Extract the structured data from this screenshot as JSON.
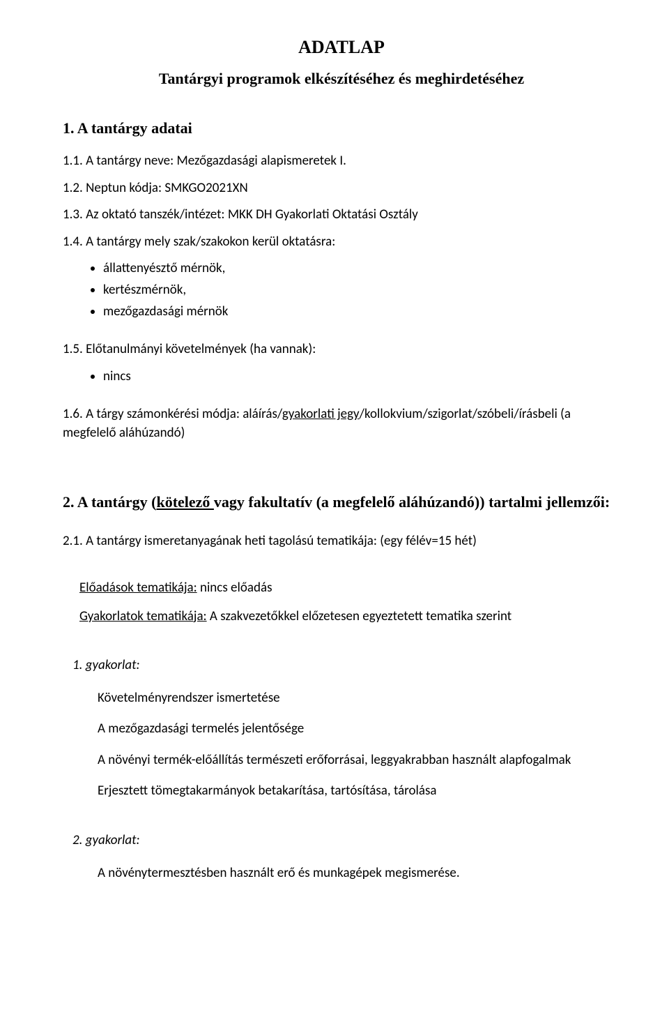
{
  "title": "ADATLAP",
  "subtitle": "Tantárgyi programok elkészítéséhez és meghirdetéséhez",
  "section1": {
    "heading": "1. A tantárgy adatai",
    "l11": "1.1. A tantárgy neve: Mezőgazdasági alapismeretek I.",
    "l12": "1.2. Neptun kódja: SMKGO2021XN",
    "l13": "1.3. Az oktató tanszék/intézet: MKK DH Gyakorlati Oktatási Osztály",
    "l14": "1.4. A tantárgy mely szak/szakokon kerül oktatásra:",
    "bullets14": [
      "állattenyésztő mérnök,",
      "kertészmérnök,",
      "mezőgazdasági mérnök"
    ],
    "l15": "1.5. Előtanulmányi követelmények (ha vannak):",
    "bullets15": [
      "nincs"
    ],
    "l16_pre": "1.6. A tárgy számonkérési módja: aláírás/",
    "l16_u": "gyakorlati jegy",
    "l16_post": "/kollokvium/szigorlat/szóbeli/írásbeli (a megfelelő aláhúzandó)"
  },
  "section2": {
    "heading_pre": "2. A tantárgy (",
    "heading_u": "kötelező ",
    "heading_post": "vagy fakultatív (a megfelelő aláhúzandó)) tartalmi jellemzői:",
    "l21": "2.1. A tantárgy ismeretanyagának heti tagolású tematikája: (egy félév=15 hét)",
    "eloadas_u": "Előadások tematikája:",
    "eloadas_post": " nincs előadás",
    "gyak_u": "Gyakorlatok tematikája:",
    "gyak_post": "  A szakvezetőkkel előzetesen egyeztetett tematika szerint",
    "g1": {
      "head": "1. gyakorlat:",
      "items": [
        "Követelményrendszer ismertetése",
        "A mezőgazdasági termelés jelentősége",
        "A növényi termék-előállítás természeti erőforrásai, leggyakrabban használt alapfogalmak",
        "Erjesztett tömegtakarmányok betakarítása, tartósítása, tárolása"
      ]
    },
    "g2": {
      "head": "2. gyakorlat:",
      "items": [
        "A növénytermesztésben használt erő és munkagépek megismerése."
      ]
    }
  }
}
